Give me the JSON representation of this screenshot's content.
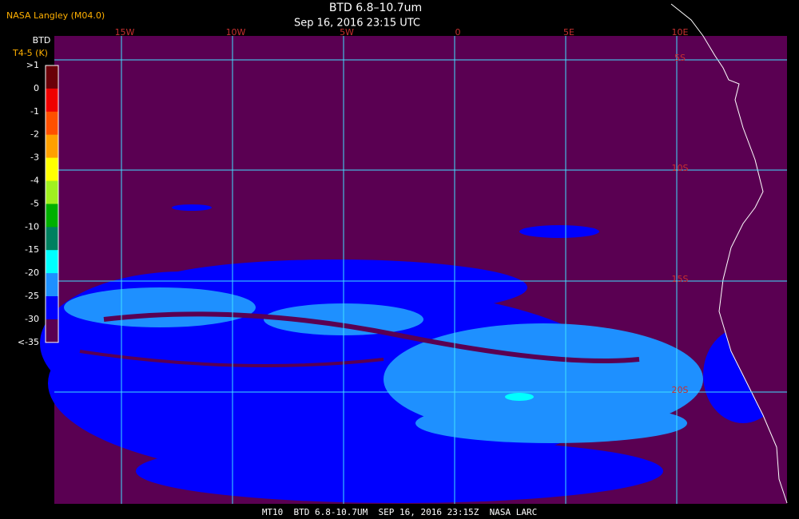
{
  "header": {
    "source": "NASA Langley (M04.0)",
    "title": "BTD 6.8–10.7um",
    "time": "Sep 16, 2016 23:15 UTC"
  },
  "legend": {
    "title": "BTD",
    "subtitle": "T4-5 (K)",
    "labels": [
      ">1",
      "0",
      "-1",
      "-2",
      "-3",
      "-4",
      "-5",
      "-10",
      "-15",
      "-20",
      "-25",
      "-30",
      "<-35"
    ],
    "colors": [
      "#6a0008",
      "#f00000",
      "#ff5000",
      "#ffa000",
      "#ffff00",
      "#a0f020",
      "#00b000",
      "#008060",
      "#00ffff",
      "#1e90ff",
      "#0000ff",
      "#5a0052"
    ]
  },
  "grid": {
    "longitudes": [
      "15W",
      "10W",
      "5W",
      "0",
      "5E",
      "10E"
    ],
    "latitudes": [
      "5S",
      "10S",
      "15S",
      "20S"
    ]
  },
  "footer": "MT10  BTD 6.8-10.7UM  SEP 16, 2016 23:15Z  NASA LARC"
}
